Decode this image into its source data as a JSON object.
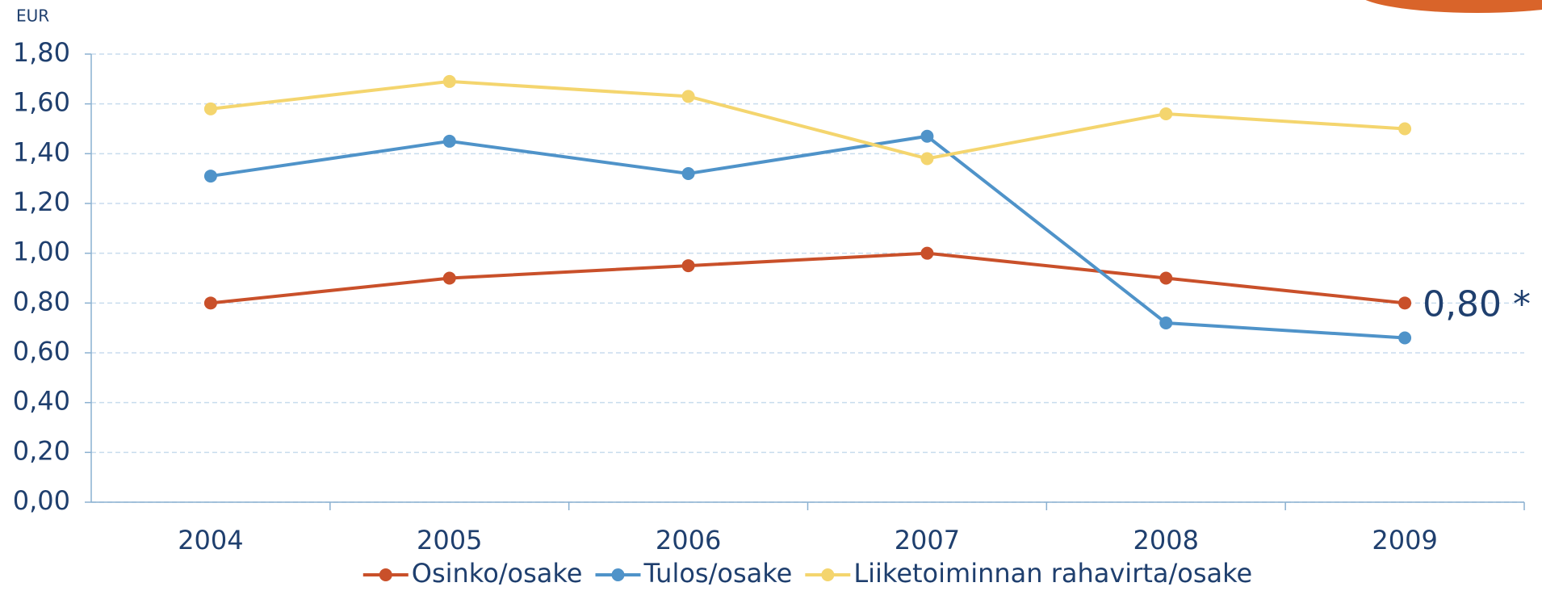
{
  "chart_data": {
    "type": "line",
    "unit_label": "EUR",
    "categories": [
      "2004",
      "2005",
      "2006",
      "2007",
      "2008",
      "2009"
    ],
    "series": [
      {
        "name": "Osinko/osake",
        "color": "#c9502a",
        "values": [
          0.8,
          0.9,
          0.95,
          1.0,
          0.9,
          0.8
        ]
      },
      {
        "name": "Tulos/osake",
        "color": "#4f93c9",
        "values": [
          1.31,
          1.45,
          1.32,
          1.47,
          0.72,
          0.66
        ]
      },
      {
        "name": "Liiketoiminnan rahavirta/osake",
        "color": "#f4d56e",
        "values": [
          1.58,
          1.69,
          1.63,
          1.38,
          1.56,
          1.5
        ]
      }
    ],
    "ylim": [
      0,
      1.8
    ],
    "yticks": [
      {
        "value": 0,
        "label": "0,00"
      },
      {
        "value": 0.2,
        "label": "0,20"
      },
      {
        "value": 0.4,
        "label": "0,40"
      },
      {
        "value": 0.6,
        "label": "0,60"
      },
      {
        "value": 0.8,
        "label": "0,80"
      },
      {
        "value": 1.0,
        "label": "1,00"
      },
      {
        "value": 1.2,
        "label": "1,20"
      },
      {
        "value": 1.4,
        "label": "1,40"
      },
      {
        "value": 1.6,
        "label": "1,60"
      },
      {
        "value": 1.8,
        "label": "1,80"
      }
    ],
    "grid": true,
    "legend": "bottom",
    "annotation": "0,80 *"
  }
}
